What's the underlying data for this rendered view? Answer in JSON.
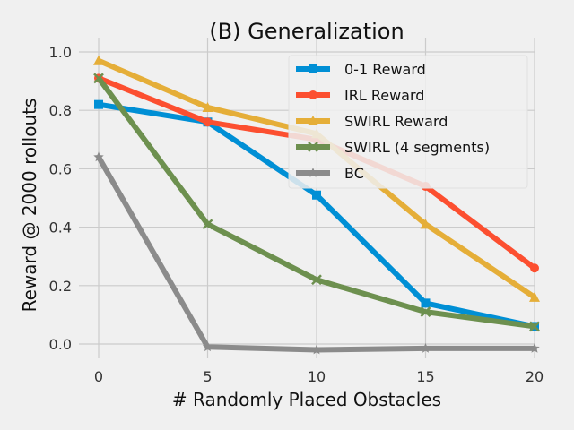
{
  "chart_data": {
    "type": "line",
    "title": "(B) Generalization",
    "xlabel": "# Randomly Placed Obstacles",
    "ylabel": "Reward @ 2000 rollouts",
    "x": [
      0,
      5,
      10,
      15,
      20
    ],
    "xlim": [
      -0.5,
      20
    ],
    "ylim": [
      -0.03,
      1.0
    ],
    "xticks": [
      "0",
      "5",
      "10",
      "15",
      "20"
    ],
    "yticks": [
      "0.0",
      "0.2",
      "0.4",
      "0.6",
      "0.8",
      "1.0"
    ],
    "grid": true,
    "legend_position": "top-right",
    "series": [
      {
        "name": "0-1 Reward",
        "color": "#008fd5",
        "marker": "square",
        "values": [
          0.82,
          0.76,
          0.51,
          0.14,
          0.06
        ]
      },
      {
        "name": "IRL Reward",
        "color": "#fc4f30",
        "marker": "circle",
        "values": [
          0.91,
          0.76,
          0.7,
          0.54,
          0.26
        ]
      },
      {
        "name": "SWIRL Reward",
        "color": "#e5ae38",
        "marker": "triangle",
        "values": [
          0.97,
          0.81,
          0.72,
          0.41,
          0.16
        ]
      },
      {
        "name": "SWIRL (4 segments)",
        "color": "#6d904f",
        "marker": "x",
        "values": [
          0.91,
          0.41,
          0.22,
          0.11,
          0.06
        ]
      },
      {
        "name": "BC",
        "color": "#8b8b8b",
        "marker": "star",
        "values": [
          0.64,
          -0.01,
          -0.02,
          -0.015,
          -0.015
        ]
      }
    ]
  }
}
